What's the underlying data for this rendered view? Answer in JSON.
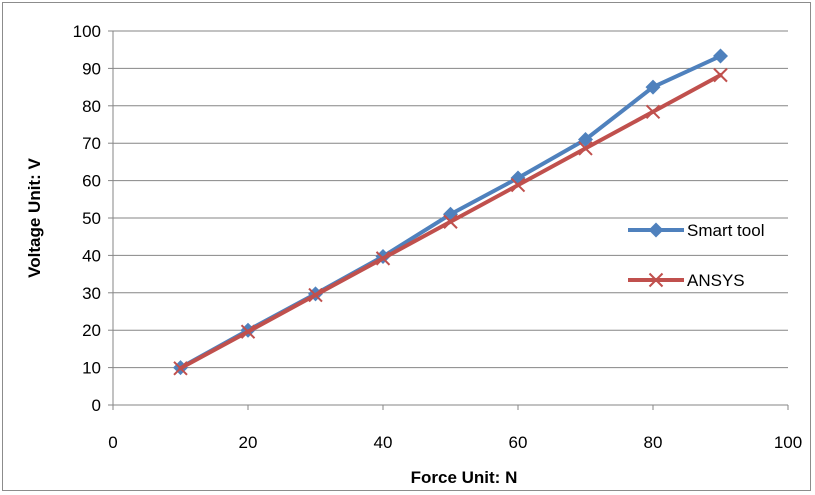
{
  "chart_data": {
    "type": "line",
    "title": "",
    "xlabel": "Force  Unit: N",
    "ylabel": "Voltage  Unit: V",
    "xlim": [
      0,
      100
    ],
    "ylim": [
      0,
      100
    ],
    "xticks": [
      0,
      20,
      40,
      60,
      80,
      100
    ],
    "yticks": [
      0,
      10,
      20,
      30,
      40,
      50,
      60,
      70,
      80,
      90,
      100
    ],
    "grid": "horizontal",
    "legend": "right",
    "series": [
      {
        "name": "Smart tool",
        "color": "#4F81BD",
        "marker": "diamond",
        "x": [
          10,
          20,
          30,
          40,
          50,
          60,
          70,
          80,
          90
        ],
        "y": [
          10,
          20,
          29.7,
          39.7,
          51,
          60.7,
          71,
          85,
          93.3
        ]
      },
      {
        "name": "ANSYS",
        "color": "#C0504D",
        "marker": "x",
        "x": [
          10,
          20,
          30,
          40,
          50,
          60,
          70,
          80,
          90
        ],
        "y": [
          9.8,
          19.6,
          29.4,
          39.2,
          49,
          58.8,
          68.6,
          78.4,
          88.2
        ]
      }
    ]
  }
}
